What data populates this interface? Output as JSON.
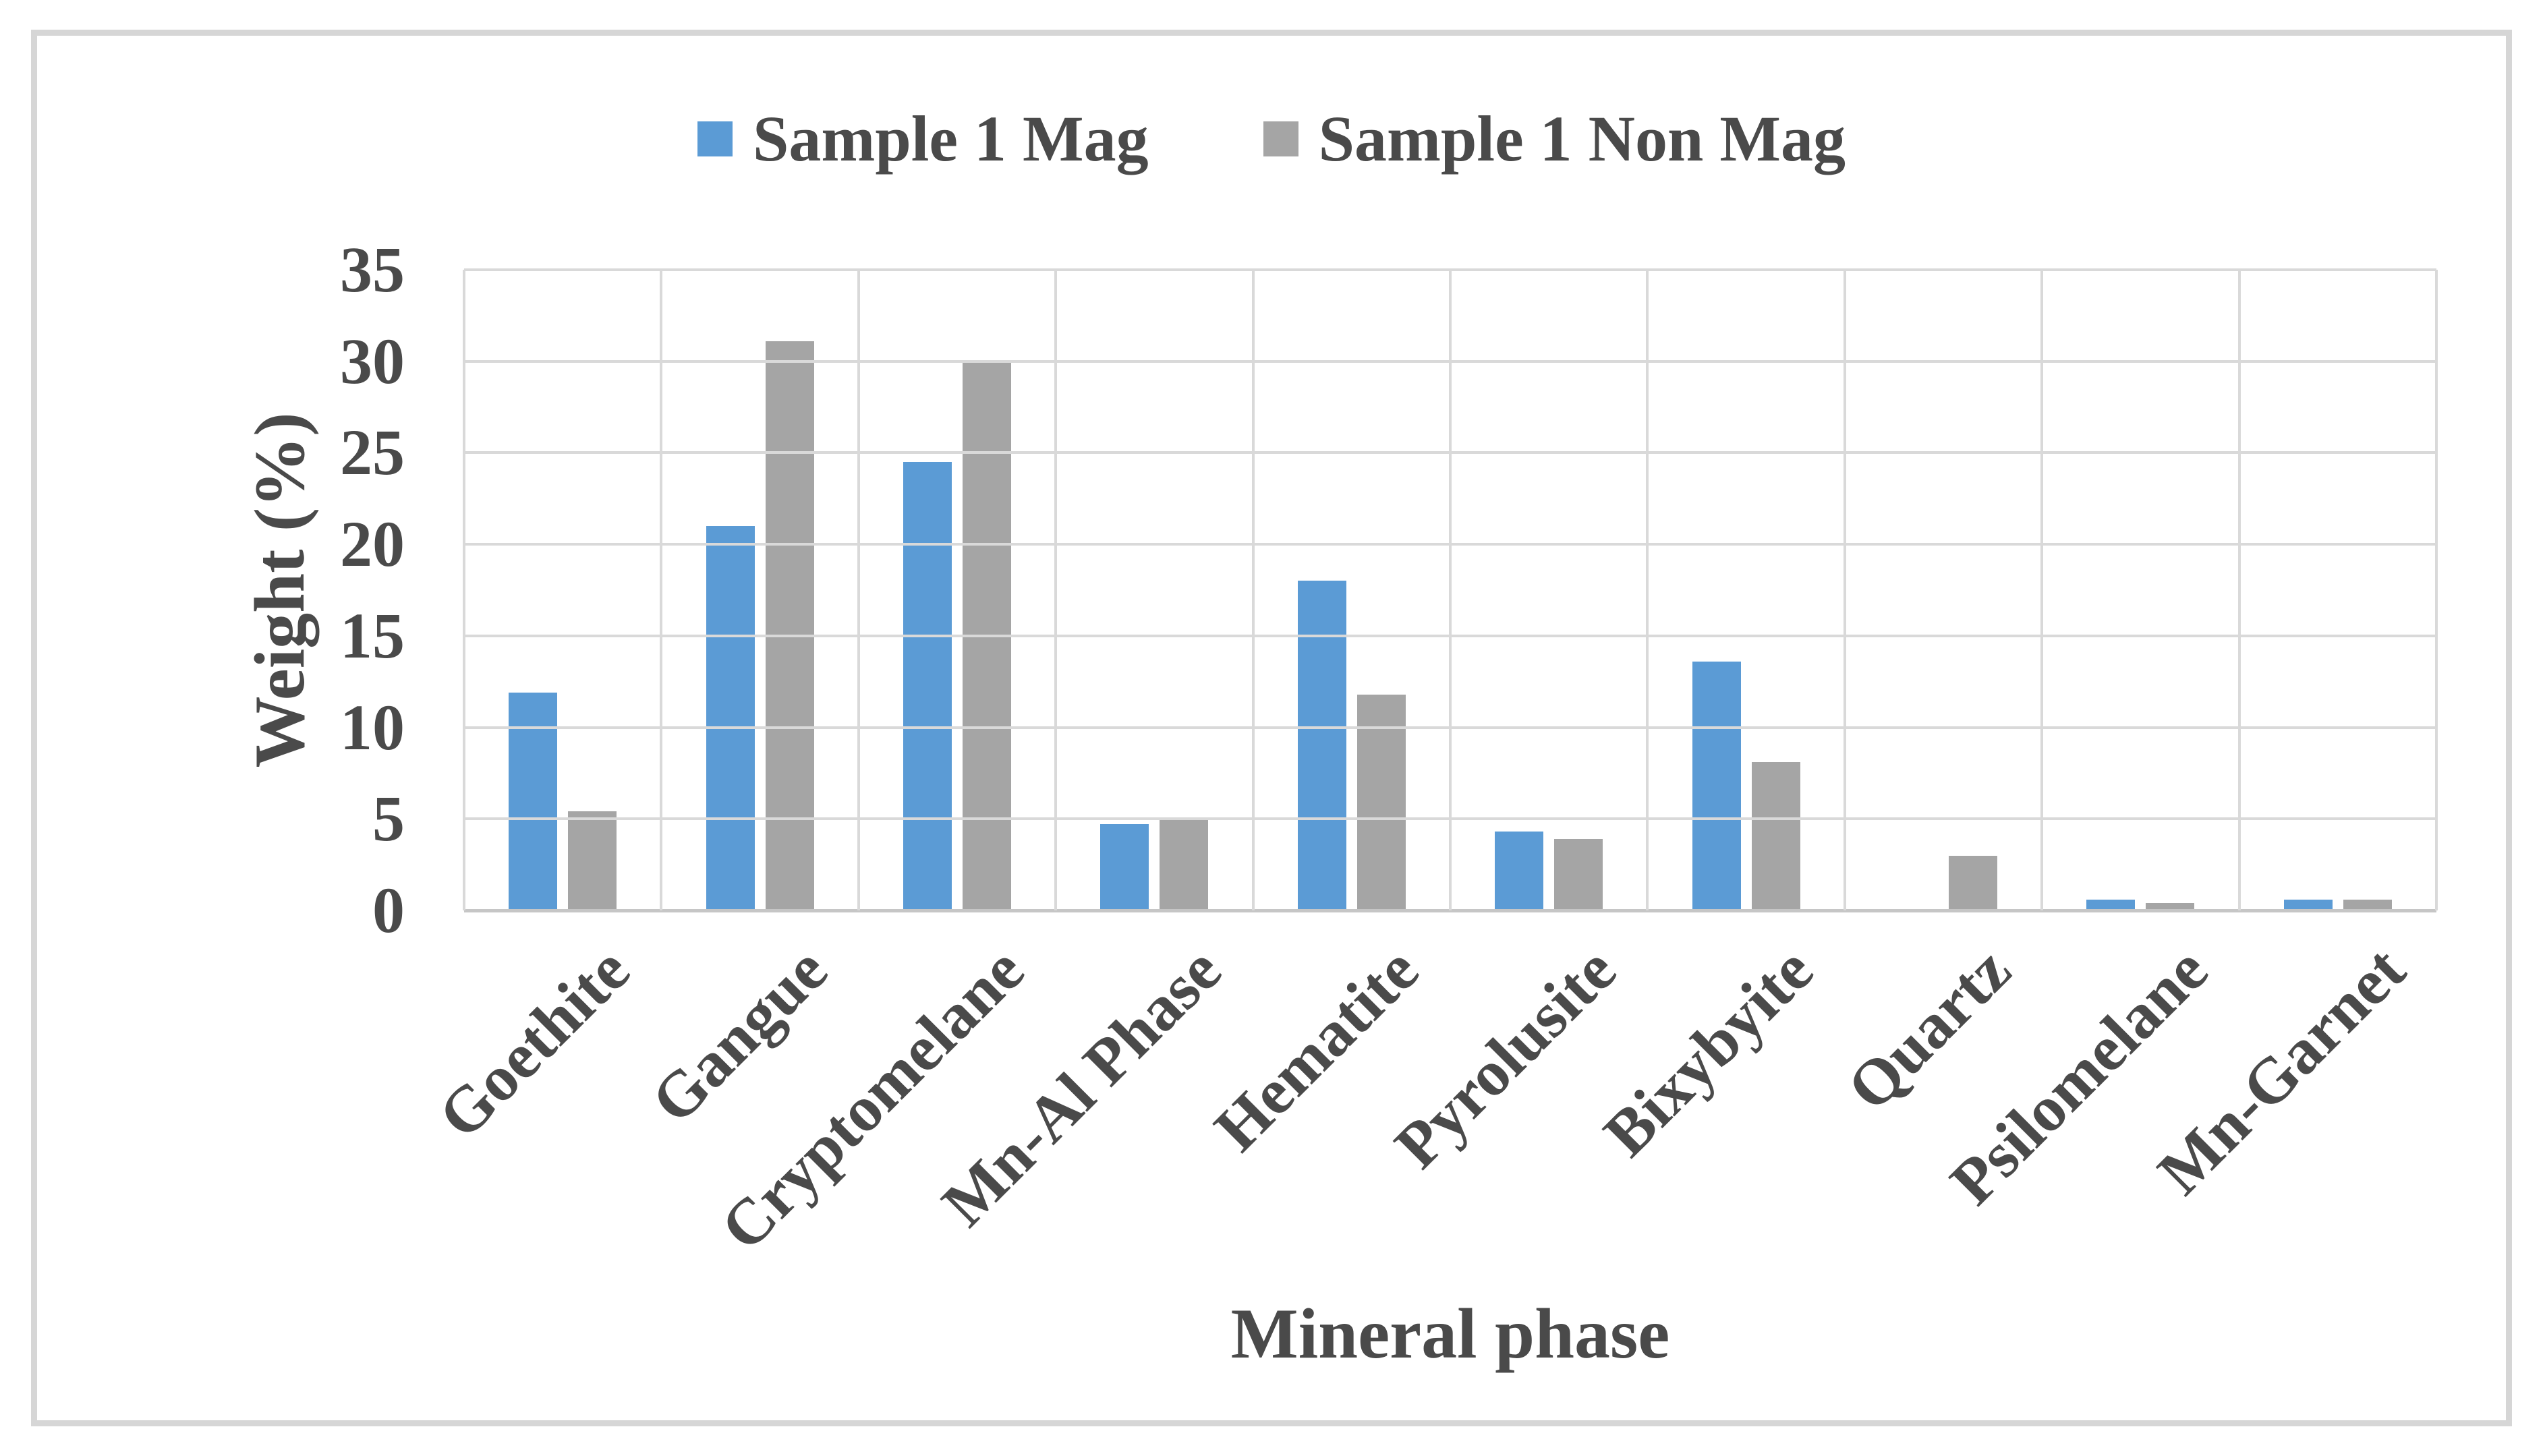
{
  "frame": {
    "border_color": "#d6d6d6"
  },
  "legend": {
    "position": "top-center",
    "items": [
      {
        "label": "Sample 1 Mag",
        "color": "#5b9bd5"
      },
      {
        "label": "Sample 1 Non Mag",
        "color": "#a5a5a5"
      }
    ]
  },
  "chart_data": {
    "type": "bar",
    "title": "",
    "categories": [
      "Goethite",
      "Gangue",
      "Cryptomelane",
      "Mn-Al Phase",
      "Hematite",
      "Pyrolusite",
      "Bixybyite",
      "Quartz",
      "Psilomelane",
      "Mn-Garnet"
    ],
    "series": [
      {
        "name": "Sample 1 Mag",
        "color": "#5b9bd5",
        "values": [
          11.9,
          21.0,
          24.5,
          4.7,
          18.0,
          4.3,
          13.6,
          0,
          0.6,
          0.6
        ]
      },
      {
        "name": "Sample 1 Non Mag",
        "color": "#a5a5a5",
        "values": [
          5.4,
          31.1,
          30.0,
          5.0,
          11.8,
          3.9,
          8.1,
          3.0,
          0.4,
          0.6
        ]
      }
    ],
    "xlabel": "Mineral phase",
    "ylabel": "Weight (%)",
    "ylim": [
      0,
      35
    ],
    "yticks": [
      0,
      5,
      10,
      15,
      20,
      25,
      30,
      35
    ],
    "grid": "horizontal gridlines at each ytick; vertical gridlines at category boundaries",
    "gridline_color": "#d9d9d9",
    "text_color": "#4a4a4a",
    "legend_position": "top-center"
  }
}
